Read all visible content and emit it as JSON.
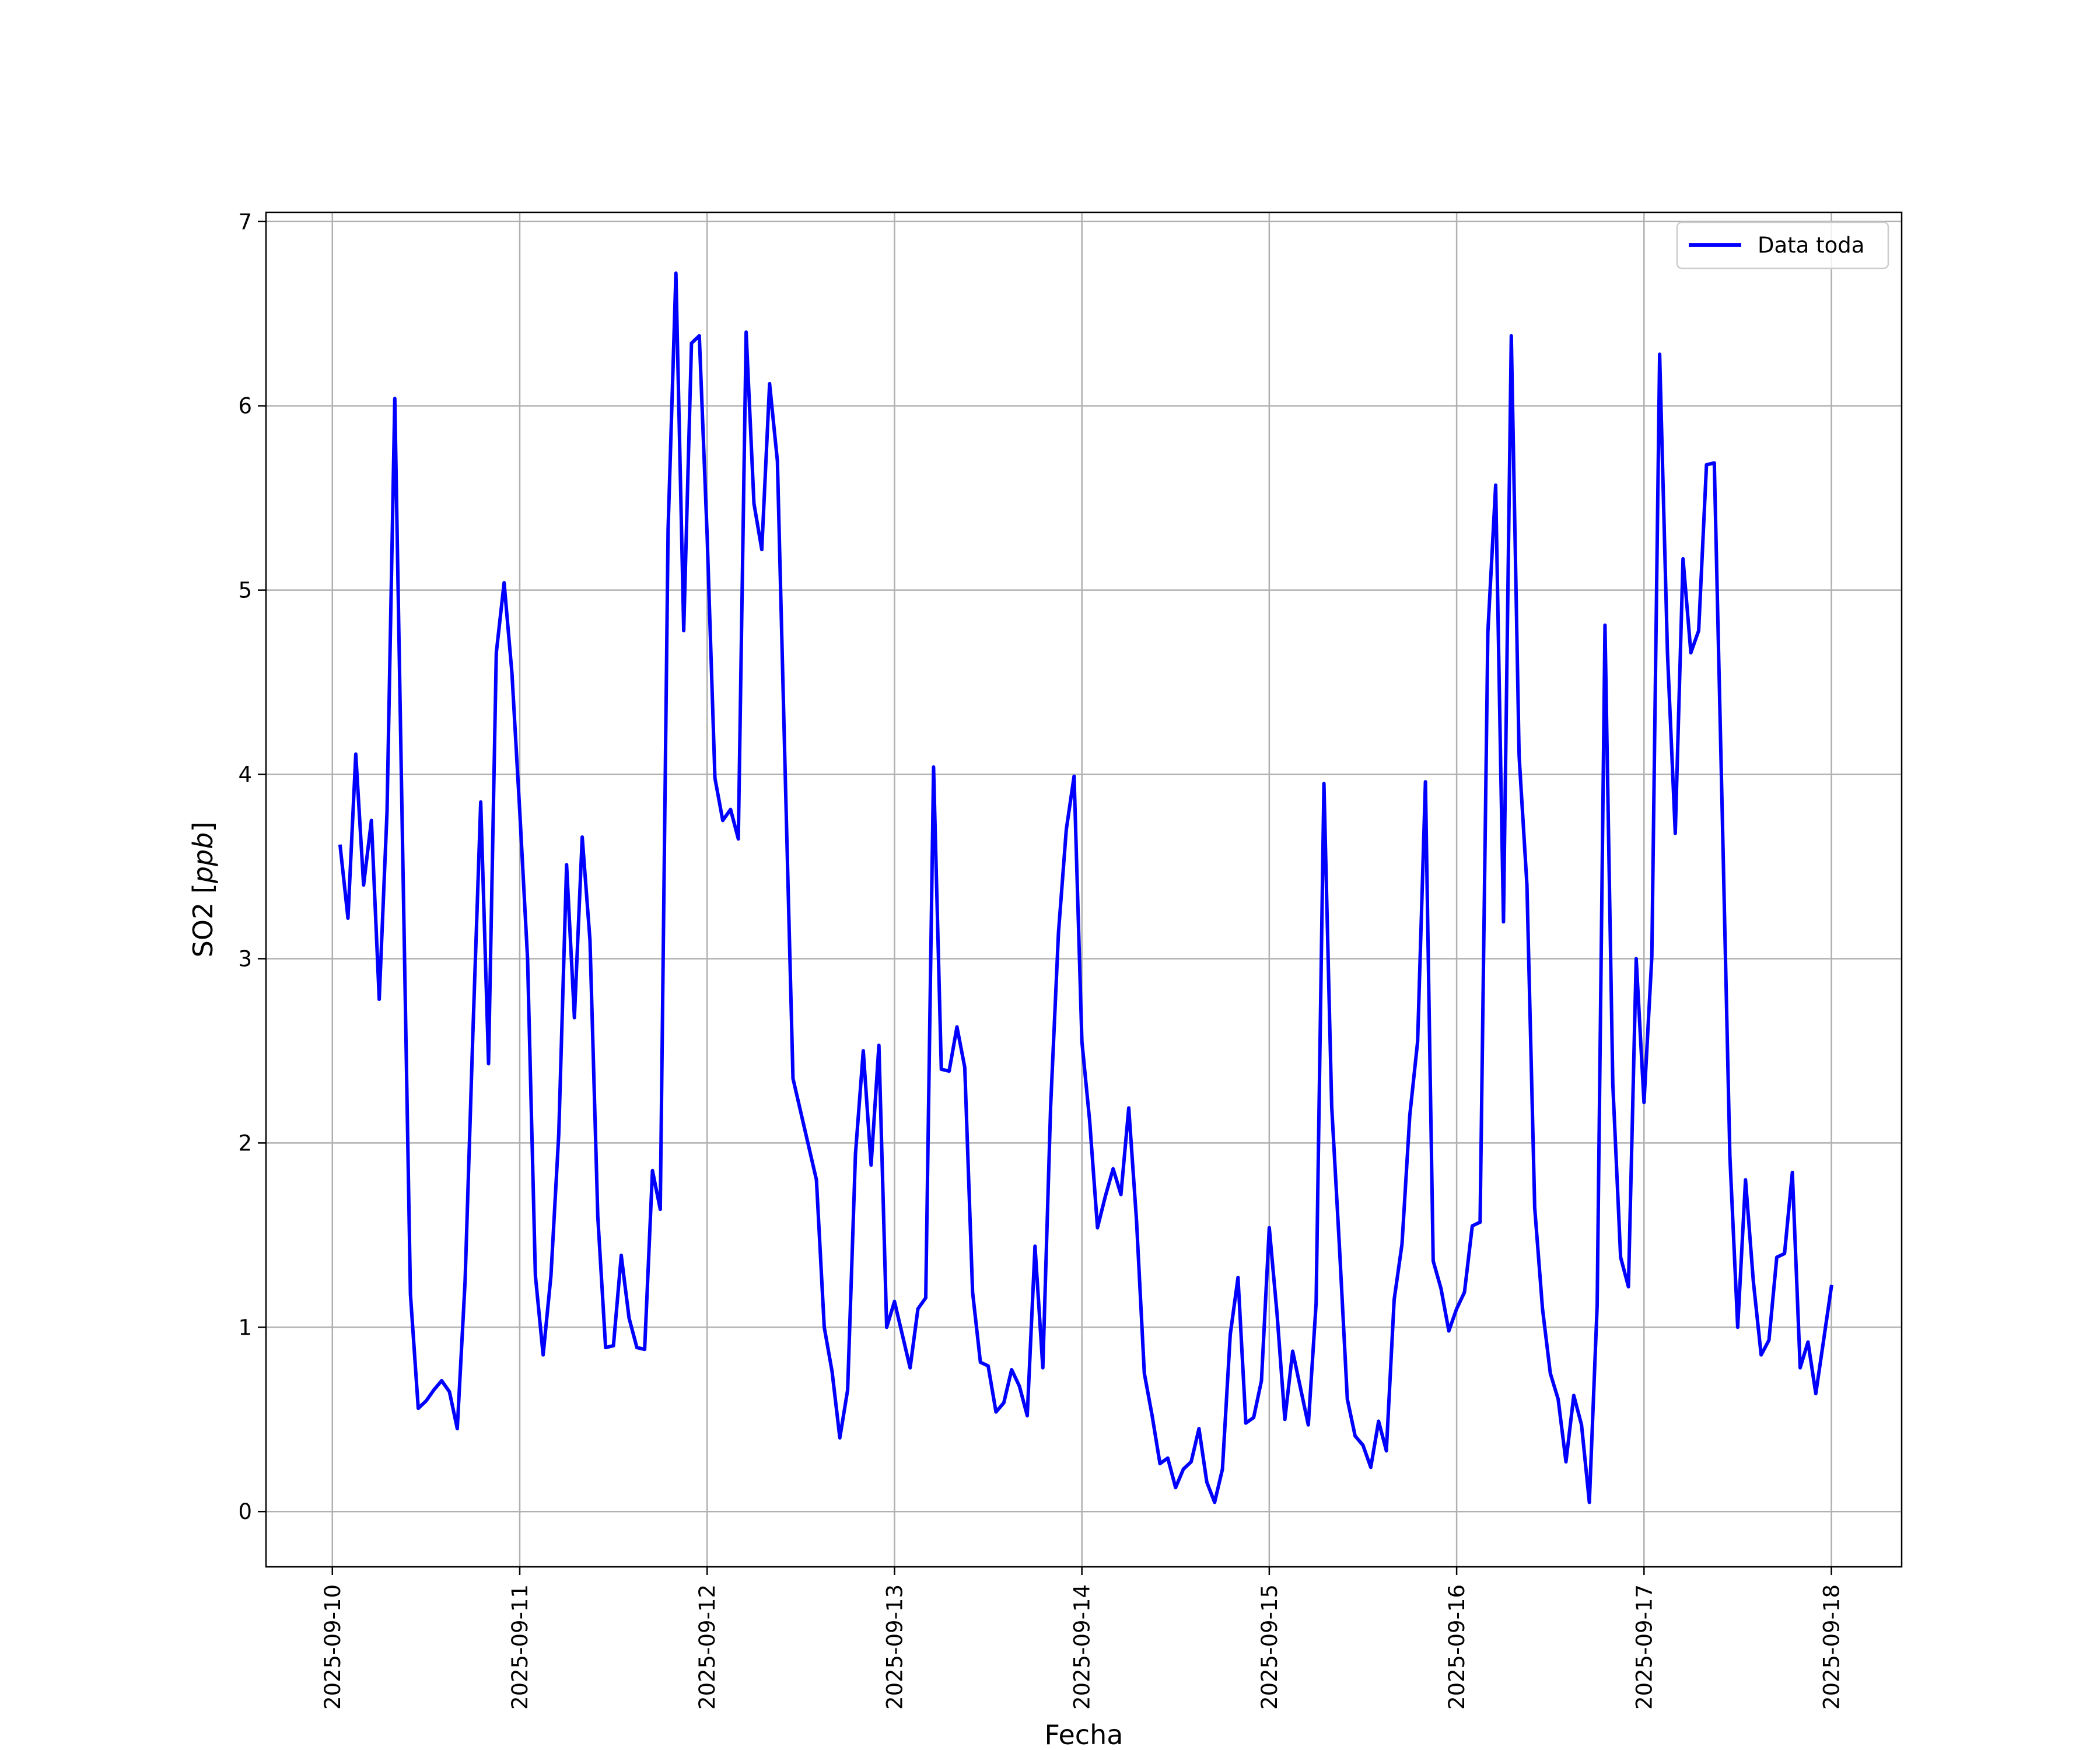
{
  "chart_data": {
    "type": "line",
    "xlabel": "Fecha",
    "ylabel_prefix": "SO2 [",
    "ylabel_unit": "ppb",
    "ylabel_suffix": "]",
    "ylim": [
      -0.3,
      7.05
    ],
    "xlim": [
      "2025-09-09T15:30",
      "2025-09-18T09:00"
    ],
    "x_ticks": [
      "2025-09-10",
      "2025-09-11",
      "2025-09-12",
      "2025-09-13",
      "2025-09-14",
      "2025-09-15",
      "2025-09-16",
      "2025-09-17",
      "2025-09-18"
    ],
    "y_ticks": [
      0,
      1,
      2,
      3,
      4,
      5,
      6,
      7
    ],
    "grid": true,
    "legend_position": "top-right",
    "series": [
      {
        "name": "Data toda",
        "color": "#0000ff",
        "points": [
          [
            "2025-09-10T01:00",
            3.61
          ],
          [
            "2025-09-10T02:00",
            3.22
          ],
          [
            "2025-09-10T03:00",
            4.11
          ],
          [
            "2025-09-10T04:00",
            3.4
          ],
          [
            "2025-09-10T05:00",
            3.75
          ],
          [
            "2025-09-10T06:00",
            2.78
          ],
          [
            "2025-09-10T07:00",
            3.8
          ],
          [
            "2025-09-10T08:00",
            6.04
          ],
          [
            "2025-09-10T09:00",
            3.6
          ],
          [
            "2025-09-10T10:00",
            1.18
          ],
          [
            "2025-09-10T11:00",
            0.56
          ],
          [
            "2025-09-10T12:00",
            0.6
          ],
          [
            "2025-09-10T13:00",
            0.66
          ],
          [
            "2025-09-10T14:00",
            0.71
          ],
          [
            "2025-09-10T15:00",
            0.65
          ],
          [
            "2025-09-10T16:00",
            0.45
          ],
          [
            "2025-09-10T17:00",
            1.25
          ],
          [
            "2025-09-10T18:00",
            2.6
          ],
          [
            "2025-09-10T19:00",
            3.85
          ],
          [
            "2025-09-10T20:00",
            2.43
          ],
          [
            "2025-09-10T21:00",
            4.66
          ],
          [
            "2025-09-10T22:00",
            5.04
          ],
          [
            "2025-09-10T23:00",
            4.55
          ],
          [
            "2025-09-11T00:00",
            3.8
          ],
          [
            "2025-09-11T01:00",
            3.0
          ],
          [
            "2025-09-11T02:00",
            1.28
          ],
          [
            "2025-09-11T03:00",
            0.85
          ],
          [
            "2025-09-11T04:00",
            1.28
          ],
          [
            "2025-09-11T05:00",
            2.05
          ],
          [
            "2025-09-11T06:00",
            3.51
          ],
          [
            "2025-09-11T07:00",
            2.68
          ],
          [
            "2025-09-11T08:00",
            3.66
          ],
          [
            "2025-09-11T09:00",
            3.1
          ],
          [
            "2025-09-11T10:00",
            1.6
          ],
          [
            "2025-09-11T11:00",
            0.89
          ],
          [
            "2025-09-11T12:00",
            0.9
          ],
          [
            "2025-09-11T13:00",
            1.39
          ],
          [
            "2025-09-11T14:00",
            1.05
          ],
          [
            "2025-09-11T15:00",
            0.89
          ],
          [
            "2025-09-11T16:00",
            0.88
          ],
          [
            "2025-09-11T17:00",
            1.85
          ],
          [
            "2025-09-11T18:00",
            1.64
          ],
          [
            "2025-09-11T19:00",
            5.33
          ],
          [
            "2025-09-11T20:00",
            6.72
          ],
          [
            "2025-09-11T21:00",
            4.78
          ],
          [
            "2025-09-11T22:00",
            6.34
          ],
          [
            "2025-09-11T23:00",
            6.38
          ],
          [
            "2025-09-12T00:00",
            5.3
          ],
          [
            "2025-09-12T01:00",
            3.98
          ],
          [
            "2025-09-12T02:00",
            3.75
          ],
          [
            "2025-09-12T03:00",
            3.81
          ],
          [
            "2025-09-12T04:00",
            3.65
          ],
          [
            "2025-09-12T05:00",
            6.4
          ],
          [
            "2025-09-12T06:00",
            5.47
          ],
          [
            "2025-09-12T07:00",
            5.22
          ],
          [
            "2025-09-12T08:00",
            6.12
          ],
          [
            "2025-09-12T09:00",
            5.7
          ],
          [
            "2025-09-12T10:00",
            4.0
          ],
          [
            "2025-09-12T11:00",
            2.35
          ],
          [
            "2025-09-12T14:00",
            1.8
          ],
          [
            "2025-09-12T15:00",
            1.0
          ],
          [
            "2025-09-12T16:00",
            0.76
          ],
          [
            "2025-09-12T17:00",
            0.4
          ],
          [
            "2025-09-12T18:00",
            0.66
          ],
          [
            "2025-09-12T19:00",
            1.94
          ],
          [
            "2025-09-12T20:00",
            2.5
          ],
          [
            "2025-09-12T21:00",
            1.88
          ],
          [
            "2025-09-12T22:00",
            2.53
          ],
          [
            "2025-09-12T23:00",
            1.0
          ],
          [
            "2025-09-13T00:00",
            1.14
          ],
          [
            "2025-09-13T01:00",
            0.96
          ],
          [
            "2025-09-13T02:00",
            0.78
          ],
          [
            "2025-09-13T03:00",
            1.1
          ],
          [
            "2025-09-13T04:00",
            1.16
          ],
          [
            "2025-09-13T05:00",
            4.04
          ],
          [
            "2025-09-13T06:00",
            2.4
          ],
          [
            "2025-09-13T07:00",
            2.39
          ],
          [
            "2025-09-13T08:00",
            2.63
          ],
          [
            "2025-09-13T09:00",
            2.41
          ],
          [
            "2025-09-13T10:00",
            1.19
          ],
          [
            "2025-09-13T11:00",
            0.81
          ],
          [
            "2025-09-13T12:00",
            0.79
          ],
          [
            "2025-09-13T13:00",
            0.54
          ],
          [
            "2025-09-13T14:00",
            0.59
          ],
          [
            "2025-09-13T15:00",
            0.77
          ],
          [
            "2025-09-13T16:00",
            0.68
          ],
          [
            "2025-09-13T17:00",
            0.52
          ],
          [
            "2025-09-13T18:00",
            1.44
          ],
          [
            "2025-09-13T19:00",
            0.78
          ],
          [
            "2025-09-13T20:00",
            2.2
          ],
          [
            "2025-09-13T21:00",
            3.14
          ],
          [
            "2025-09-13T22:00",
            3.7
          ],
          [
            "2025-09-13T23:00",
            3.99
          ],
          [
            "2025-09-14T00:00",
            2.55
          ],
          [
            "2025-09-14T01:00",
            2.12
          ],
          [
            "2025-09-14T02:00",
            1.54
          ],
          [
            "2025-09-14T03:00",
            1.71
          ],
          [
            "2025-09-14T04:00",
            1.86
          ],
          [
            "2025-09-14T05:00",
            1.72
          ],
          [
            "2025-09-14T06:00",
            2.19
          ],
          [
            "2025-09-14T07:00",
            1.58
          ],
          [
            "2025-09-14T08:00",
            0.75
          ],
          [
            "2025-09-14T09:00",
            0.52
          ],
          [
            "2025-09-14T10:00",
            0.26
          ],
          [
            "2025-09-14T11:00",
            0.29
          ],
          [
            "2025-09-14T12:00",
            0.13
          ],
          [
            "2025-09-14T13:00",
            0.23
          ],
          [
            "2025-09-14T14:00",
            0.27
          ],
          [
            "2025-09-14T15:00",
            0.45
          ],
          [
            "2025-09-14T16:00",
            0.16
          ],
          [
            "2025-09-14T17:00",
            0.05
          ],
          [
            "2025-09-14T18:00",
            0.23
          ],
          [
            "2025-09-14T19:00",
            0.96
          ],
          [
            "2025-09-14T20:00",
            1.27
          ],
          [
            "2025-09-14T21:00",
            0.48
          ],
          [
            "2025-09-14T22:00",
            0.51
          ],
          [
            "2025-09-14T23:00",
            0.71
          ],
          [
            "2025-09-15T00:00",
            1.54
          ],
          [
            "2025-09-15T01:00",
            1.07
          ],
          [
            "2025-09-15T02:00",
            0.5
          ],
          [
            "2025-09-15T03:00",
            0.87
          ],
          [
            "2025-09-15T04:00",
            0.67
          ],
          [
            "2025-09-15T05:00",
            0.47
          ],
          [
            "2025-09-15T06:00",
            1.13
          ],
          [
            "2025-09-15T07:00",
            3.95
          ],
          [
            "2025-09-15T08:00",
            2.2
          ],
          [
            "2025-09-15T09:00",
            1.43
          ],
          [
            "2025-09-15T10:00",
            0.61
          ],
          [
            "2025-09-15T11:00",
            0.41
          ],
          [
            "2025-09-15T12:00",
            0.36
          ],
          [
            "2025-09-15T13:00",
            0.24
          ],
          [
            "2025-09-15T14:00",
            0.49
          ],
          [
            "2025-09-15T15:00",
            0.33
          ],
          [
            "2025-09-15T16:00",
            1.15
          ],
          [
            "2025-09-15T17:00",
            1.45
          ],
          [
            "2025-09-15T18:00",
            2.15
          ],
          [
            "2025-09-15T19:00",
            2.55
          ],
          [
            "2025-09-15T20:00",
            3.96
          ],
          [
            "2025-09-15T21:00",
            1.36
          ],
          [
            "2025-09-15T22:00",
            1.21
          ],
          [
            "2025-09-15T23:00",
            0.98
          ],
          [
            "2025-09-16T00:00",
            1.1
          ],
          [
            "2025-09-16T01:00",
            1.19
          ],
          [
            "2025-09-16T02:00",
            1.55
          ],
          [
            "2025-09-16T03:00",
            1.57
          ],
          [
            "2025-09-16T04:00",
            4.77
          ],
          [
            "2025-09-16T05:00",
            5.57
          ],
          [
            "2025-09-16T06:00",
            3.2
          ],
          [
            "2025-09-16T07:00",
            6.38
          ],
          [
            "2025-09-16T08:00",
            4.1
          ],
          [
            "2025-09-16T09:00",
            3.4
          ],
          [
            "2025-09-16T10:00",
            1.65
          ],
          [
            "2025-09-16T11:00",
            1.1
          ],
          [
            "2025-09-16T12:00",
            0.75
          ],
          [
            "2025-09-16T13:00",
            0.61
          ],
          [
            "2025-09-16T14:00",
            0.27
          ],
          [
            "2025-09-16T15:00",
            0.63
          ],
          [
            "2025-09-16T16:00",
            0.47
          ],
          [
            "2025-09-16T17:00",
            0.05
          ],
          [
            "2025-09-16T18:00",
            1.12
          ],
          [
            "2025-09-16T19:00",
            4.81
          ],
          [
            "2025-09-16T20:00",
            2.32
          ],
          [
            "2025-09-16T21:00",
            1.38
          ],
          [
            "2025-09-16T22:00",
            1.22
          ],
          [
            "2025-09-16T23:00",
            3.0
          ],
          [
            "2025-09-17T00:00",
            2.22
          ],
          [
            "2025-09-17T01:00",
            3.01
          ],
          [
            "2025-09-17T02:00",
            6.28
          ],
          [
            "2025-09-17T03:00",
            4.66
          ],
          [
            "2025-09-17T04:00",
            3.68
          ],
          [
            "2025-09-17T05:00",
            5.17
          ],
          [
            "2025-09-17T06:00",
            4.66
          ],
          [
            "2025-09-17T07:00",
            4.78
          ],
          [
            "2025-09-17T08:00",
            5.68
          ],
          [
            "2025-09-17T09:00",
            5.69
          ],
          [
            "2025-09-17T10:00",
            3.82
          ],
          [
            "2025-09-17T11:00",
            1.93
          ],
          [
            "2025-09-17T12:00",
            1.0
          ],
          [
            "2025-09-17T13:00",
            1.8
          ],
          [
            "2025-09-17T14:00",
            1.25
          ],
          [
            "2025-09-17T15:00",
            0.85
          ],
          [
            "2025-09-17T16:00",
            0.93
          ],
          [
            "2025-09-17T17:00",
            1.38
          ],
          [
            "2025-09-17T18:00",
            1.4
          ],
          [
            "2025-09-17T19:00",
            1.84
          ],
          [
            "2025-09-17T20:00",
            0.78
          ],
          [
            "2025-09-17T21:00",
            0.92
          ],
          [
            "2025-09-17T22:00",
            0.64
          ],
          [
            "2025-09-17T23:00",
            0.93
          ],
          [
            "2025-09-18T00:00",
            1.22
          ]
        ]
      }
    ]
  }
}
